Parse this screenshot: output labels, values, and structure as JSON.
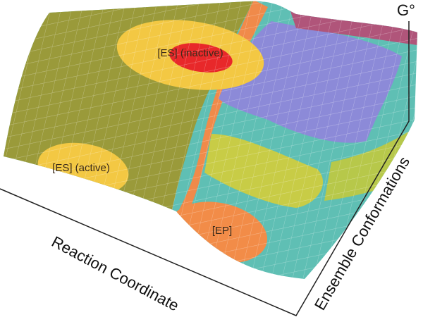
{
  "labels": {
    "es_inactive": "[ES] (inactive)",
    "es_active": "[ES] (active)",
    "ep": "[EP]"
  },
  "axes": {
    "x": "Reaction Coordinate",
    "y": "Ensemble Conformations",
    "z": "G°"
  }
}
